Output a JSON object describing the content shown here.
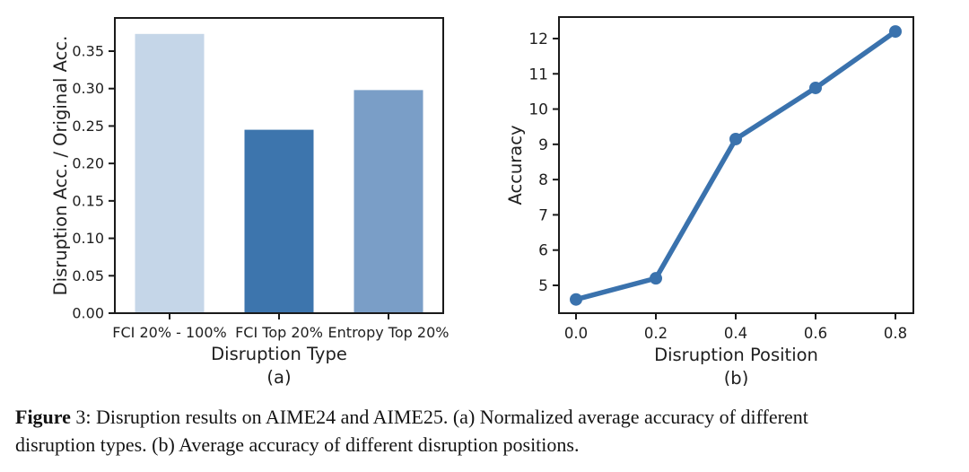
{
  "figure": {
    "caption": {
      "bold": "Figure",
      "line1_rest": " 3: Disruption results on AIME24 and AIME25. (a) Normalized average accuracy of different",
      "line2": "disruption types. (b) Average accuracy of different disruption positions."
    }
  },
  "colors": {
    "axis": "#1a1a1a",
    "tick_text": "#1f1f1f",
    "background": "#ffffff"
  },
  "chart_data": [
    {
      "type": "bar",
      "panel_label": "(a)",
      "title": "",
      "xlabel": "Disruption Type",
      "ylabel": "Disruption Acc. / Original Acc.",
      "categories": [
        "FCI 20% - 100%",
        "FCI Top 20%",
        "Entropy Top 20%"
      ],
      "values": [
        0.373,
        0.245,
        0.298
      ],
      "bar_colors": [
        "#c5d6e8",
        "#3d75ad",
        "#7a9ec7"
      ],
      "ylim": [
        0.0,
        0.394
      ],
      "yticks": [
        0.0,
        0.05,
        0.1,
        0.15,
        0.2,
        0.25,
        0.3,
        0.35
      ],
      "ytick_labels": [
        "0.00",
        "0.05",
        "0.10",
        "0.15",
        "0.20",
        "0.25",
        "0.30",
        "0.35"
      ],
      "grid": false,
      "legend": "none"
    },
    {
      "type": "line",
      "panel_label": "(b)",
      "title": "",
      "xlabel": "Disruption Position",
      "ylabel": "Accuracy",
      "x": [
        0.0,
        0.2,
        0.4,
        0.6,
        0.8
      ],
      "y": [
        4.6,
        5.2,
        9.15,
        10.6,
        12.2
      ],
      "line_color": "#3a72ad",
      "marker": "circle",
      "xlim": [
        -0.043,
        0.845
      ],
      "ylim": [
        4.21,
        12.61
      ],
      "xticks": [
        0.0,
        0.2,
        0.4,
        0.6,
        0.8
      ],
      "xtick_labels": [
        "0.0",
        "0.2",
        "0.4",
        "0.6",
        "0.8"
      ],
      "yticks": [
        5,
        6,
        7,
        8,
        9,
        10,
        11,
        12
      ],
      "ytick_labels": [
        "5",
        "6",
        "7",
        "8",
        "9",
        "10",
        "11",
        "12"
      ],
      "grid": false,
      "legend": "none"
    }
  ]
}
